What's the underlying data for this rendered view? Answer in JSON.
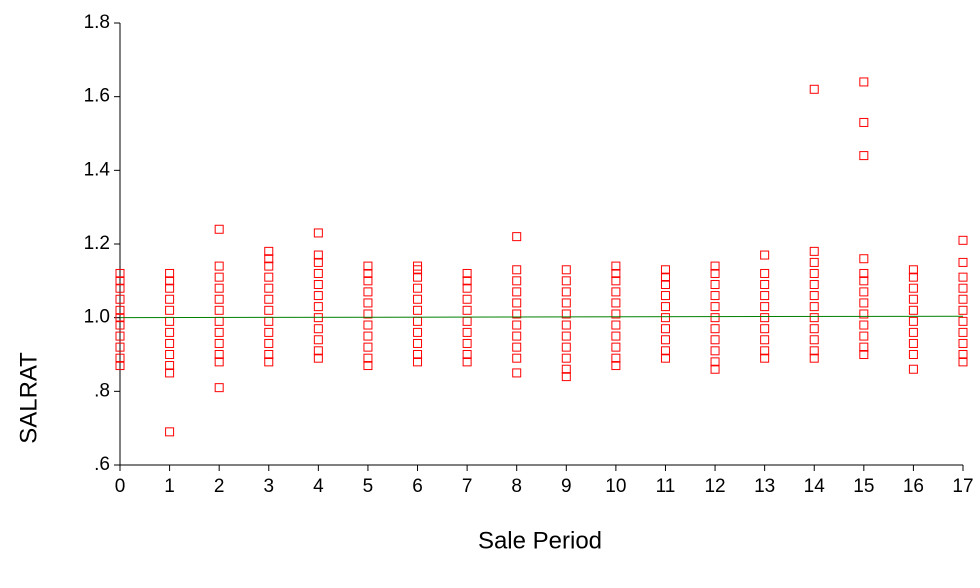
{
  "chart_data": {
    "type": "scatter",
    "xlabel": "Sale Period",
    "ylabel": "SALRAT",
    "xlim": [
      0,
      17
    ],
    "xticks": [
      0,
      1,
      2,
      3,
      4,
      5,
      6,
      7,
      8,
      9,
      10,
      11,
      12,
      13,
      14,
      15,
      16,
      17
    ],
    "ylim": [
      0.6,
      1.8
    ],
    "yticks": [
      {
        "value": 0.6,
        "label": ".6"
      },
      {
        "value": 0.8,
        "label": ".8"
      },
      {
        "value": 1.0,
        "label": "1.0"
      },
      1.2,
      1.4,
      1.6,
      1.8
    ],
    "color": "#ff0000",
    "x": [
      0,
      0,
      0,
      0,
      0,
      0,
      0,
      0,
      0,
      0,
      0,
      1,
      1,
      1,
      1,
      1,
      1,
      1,
      1,
      1,
      1,
      1,
      1,
      2,
      2,
      2,
      2,
      2,
      2,
      2,
      2,
      2,
      2,
      2,
      2,
      3,
      3,
      3,
      3,
      3,
      3,
      3,
      3,
      3,
      3,
      3,
      3,
      4,
      4,
      4,
      4,
      4,
      4,
      4,
      4,
      4,
      4,
      4,
      4,
      5,
      5,
      5,
      5,
      5,
      5,
      5,
      5,
      5,
      5,
      5,
      6,
      6,
      6,
      6,
      6,
      6,
      6,
      6,
      6,
      6,
      6,
      7,
      7,
      7,
      7,
      7,
      7,
      7,
      7,
      7,
      7,
      8,
      8,
      8,
      8,
      8,
      8,
      8,
      8,
      8,
      8,
      8,
      9,
      9,
      9,
      9,
      9,
      9,
      9,
      9,
      9,
      9,
      9,
      10,
      10,
      10,
      10,
      10,
      10,
      10,
      10,
      10,
      10,
      10,
      11,
      11,
      11,
      11,
      11,
      11,
      11,
      11,
      11,
      11,
      12,
      12,
      12,
      12,
      12,
      12,
      12,
      12,
      12,
      12,
      12,
      13,
      13,
      13,
      13,
      13,
      13,
      13,
      13,
      13,
      13,
      14,
      14,
      14,
      14,
      14,
      14,
      14,
      14,
      14,
      14,
      14,
      14,
      15,
      15,
      15,
      15,
      15,
      15,
      15,
      15,
      15,
      15,
      15,
      15,
      15,
      16,
      16,
      16,
      16,
      16,
      16,
      16,
      16,
      16,
      16,
      17,
      17,
      17,
      17,
      17,
      17,
      17,
      17,
      17,
      17,
      17
    ],
    "y": [
      0.87,
      0.89,
      0.92,
      0.95,
      0.98,
      1.0,
      1.02,
      1.05,
      1.08,
      1.1,
      1.12,
      0.69,
      0.85,
      0.87,
      0.9,
      0.93,
      0.96,
      0.99,
      1.02,
      1.05,
      1.08,
      1.1,
      1.12,
      0.81,
      0.88,
      0.9,
      0.93,
      0.96,
      0.99,
      1.02,
      1.05,
      1.08,
      1.11,
      1.14,
      1.24,
      0.88,
      0.9,
      0.93,
      0.96,
      0.99,
      1.02,
      1.05,
      1.08,
      1.11,
      1.14,
      1.16,
      1.18,
      0.89,
      0.91,
      0.94,
      0.97,
      1.0,
      1.03,
      1.06,
      1.09,
      1.12,
      1.15,
      1.17,
      1.23,
      0.87,
      0.89,
      0.92,
      0.95,
      0.98,
      1.01,
      1.04,
      1.07,
      1.1,
      1.12,
      1.14,
      0.88,
      0.9,
      0.93,
      0.96,
      0.99,
      1.02,
      1.05,
      1.08,
      1.11,
      1.13,
      1.14,
      0.88,
      0.9,
      0.93,
      0.96,
      0.99,
      1.02,
      1.05,
      1.08,
      1.1,
      1.12,
      0.85,
      0.89,
      0.92,
      0.95,
      0.98,
      1.01,
      1.04,
      1.07,
      1.1,
      1.13,
      1.22,
      0.84,
      0.86,
      0.89,
      0.92,
      0.95,
      0.98,
      1.01,
      1.04,
      1.07,
      1.1,
      1.13,
      0.87,
      0.89,
      0.92,
      0.95,
      0.98,
      1.01,
      1.04,
      1.07,
      1.1,
      1.12,
      1.14,
      0.89,
      0.91,
      0.94,
      0.97,
      1.0,
      1.03,
      1.06,
      1.09,
      1.11,
      1.13,
      0.86,
      0.88,
      0.91,
      0.94,
      0.97,
      1.0,
      1.03,
      1.06,
      1.09,
      1.12,
      1.14,
      0.89,
      0.91,
      0.94,
      0.97,
      1.0,
      1.03,
      1.06,
      1.09,
      1.12,
      1.17,
      0.89,
      0.91,
      0.94,
      0.97,
      1.0,
      1.03,
      1.06,
      1.09,
      1.12,
      1.15,
      1.18,
      1.62,
      0.9,
      0.92,
      0.95,
      0.98,
      1.01,
      1.04,
      1.07,
      1.1,
      1.12,
      1.16,
      1.44,
      1.53,
      1.64,
      0.86,
      0.9,
      0.93,
      0.96,
      0.99,
      1.02,
      1.05,
      1.08,
      1.11,
      1.13,
      0.88,
      0.9,
      0.93,
      0.96,
      0.99,
      1.02,
      1.05,
      1.08,
      1.11,
      1.15,
      1.21
    ],
    "fit": {
      "x": [
        0,
        17
      ],
      "y": [
        1.0,
        1.004
      ],
      "color": "#008000"
    }
  }
}
